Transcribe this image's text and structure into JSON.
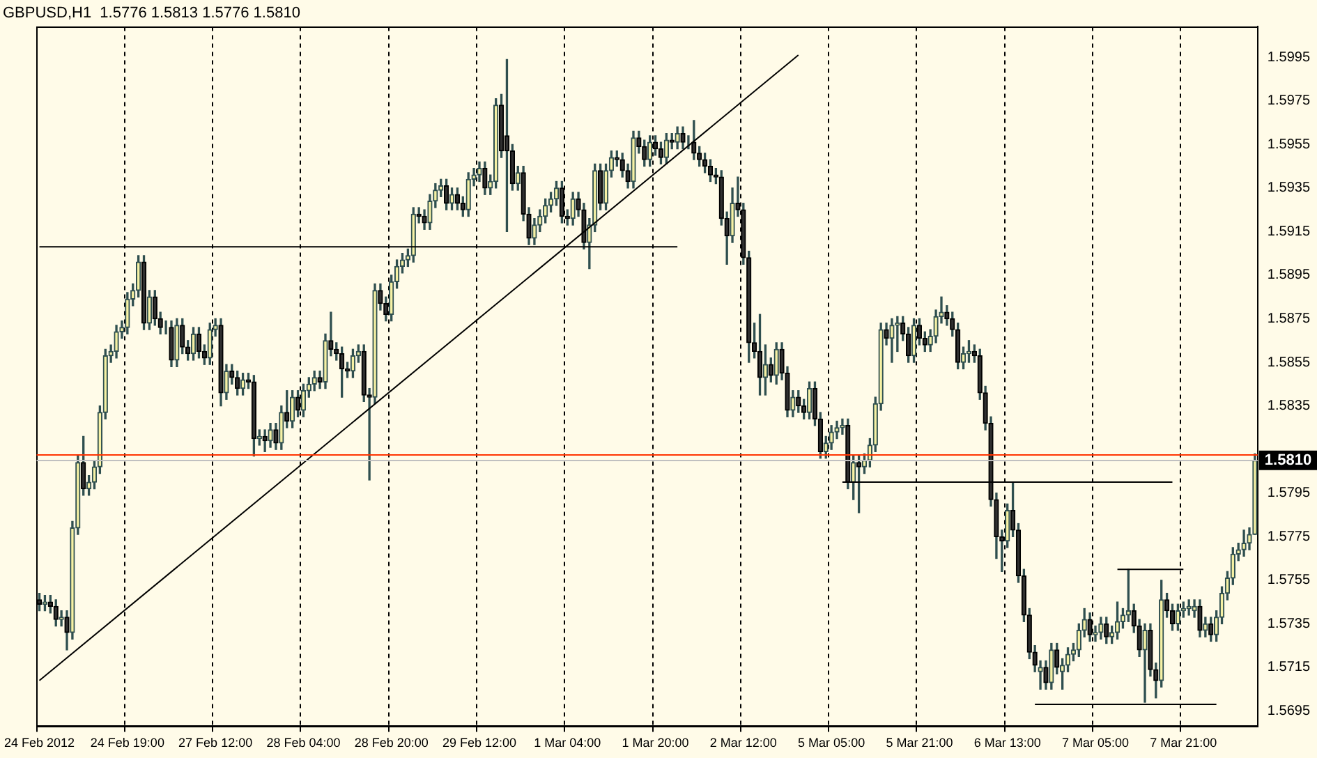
{
  "chart_data": {
    "type": "candlestick",
    "title": "GBPUSD,H1  1.5776 1.5813 1.5776 1.5810",
    "categories": [
      "24 Feb 2012",
      null,
      null,
      null,
      null,
      null,
      null,
      null,
      null,
      null,
      null,
      null,
      null,
      null,
      null,
      null,
      "24 Feb 19:00",
      null,
      null,
      null,
      null,
      null,
      null,
      null,
      null,
      null,
      null,
      null,
      null,
      null,
      null,
      null,
      "27 Feb 12:00",
      null,
      null,
      null,
      null,
      null,
      null,
      null,
      null,
      null,
      null,
      null,
      null,
      null,
      null,
      null,
      "28 Feb 04:00",
      null,
      null,
      null,
      null,
      null,
      null,
      null,
      null,
      null,
      null,
      null,
      null,
      null,
      null,
      null,
      "28 Feb 20:00",
      null,
      null,
      null,
      null,
      null,
      null,
      null,
      null,
      null,
      null,
      null,
      null,
      null,
      null,
      null,
      "29 Feb 12:00",
      null,
      null,
      null,
      null,
      null,
      null,
      null,
      null,
      null,
      null,
      null,
      null,
      null,
      null,
      null,
      "1 Mar 04:00",
      null,
      null,
      null,
      null,
      null,
      null,
      null,
      null,
      null,
      null,
      null,
      null,
      null,
      null,
      null,
      "1 Mar 20:00",
      null,
      null,
      null,
      null,
      null,
      null,
      null,
      null,
      null,
      null,
      null,
      null,
      null,
      null,
      null,
      "2 Mar 12:00",
      null,
      null,
      null,
      null,
      null,
      null,
      null,
      null,
      null,
      null,
      null,
      null,
      null,
      null,
      null,
      "5 Mar 05:00",
      null,
      null,
      null,
      null,
      null,
      null,
      null,
      null,
      null,
      null,
      null,
      null,
      null,
      null,
      null,
      "5 Mar 21:00",
      null,
      null,
      null,
      null,
      null,
      null,
      null,
      null,
      null,
      null,
      null,
      null,
      null,
      null,
      null,
      "6 Mar 13:00",
      null,
      null,
      null,
      null,
      null,
      null,
      null,
      null,
      null,
      null,
      null,
      null,
      null,
      null,
      null,
      "7 Mar 05:00",
      null,
      null,
      null,
      null,
      null,
      null,
      null,
      null,
      null,
      null,
      null,
      null,
      null,
      null,
      null,
      "7 Mar 21:00",
      null,
      null,
      null,
      null,
      null,
      null,
      null,
      null,
      null,
      null,
      null,
      null,
      null
    ],
    "ohlc": [
      [
        1.5746,
        1.5749,
        1.5741,
        1.5744
      ],
      [
        1.5744,
        1.5748,
        1.5741,
        1.5745
      ],
      [
        1.5745,
        1.5748,
        1.574,
        1.5743
      ],
      [
        1.5743,
        1.5746,
        1.5734,
        1.5737
      ],
      [
        1.5737,
        1.5741,
        1.5734,
        1.5738
      ],
      [
        1.5738,
        1.5741,
        1.5723,
        1.5731
      ],
      [
        1.5731,
        1.5782,
        1.5728,
        1.5779
      ],
      [
        1.5779,
        1.5812,
        1.5776,
        1.5809
      ],
      [
        1.5809,
        1.5821,
        1.5794,
        1.5797
      ],
      [
        1.5797,
        1.5803,
        1.5794,
        1.58
      ],
      [
        1.58,
        1.581,
        1.5797,
        1.5807
      ],
      [
        1.5807,
        1.5835,
        1.5804,
        1.5832
      ],
      [
        1.5832,
        1.5861,
        1.5829,
        1.5858
      ],
      [
        1.5858,
        1.5863,
        1.5855,
        1.586
      ],
      [
        1.586,
        1.5872,
        1.5857,
        1.5869
      ],
      [
        1.5869,
        1.5874,
        1.5866,
        1.5871
      ],
      [
        1.5871,
        1.5887,
        1.5868,
        1.5884
      ],
      [
        1.5884,
        1.5891,
        1.5881,
        1.5888
      ],
      [
        1.5888,
        1.5904,
        1.5885,
        1.5901
      ],
      [
        1.5901,
        1.5904,
        1.587,
        1.5873
      ],
      [
        1.5873,
        1.5888,
        1.587,
        1.5885
      ],
      [
        1.5885,
        1.5888,
        1.5872,
        1.5875
      ],
      [
        1.5875,
        1.5878,
        1.5868,
        1.5871
      ],
      [
        1.5871,
        1.5874,
        1.5868,
        1.5871
      ],
      [
        1.5871,
        1.5874,
        1.5853,
        1.5856
      ],
      [
        1.5856,
        1.5875,
        1.5853,
        1.5872
      ],
      [
        1.5872,
        1.5875,
        1.5859,
        1.5862
      ],
      [
        1.5862,
        1.5865,
        1.5856,
        1.5859
      ],
      [
        1.5859,
        1.5871,
        1.5856,
        1.5868
      ],
      [
        1.5868,
        1.5871,
        1.5857,
        1.586
      ],
      [
        1.586,
        1.5863,
        1.5854,
        1.5857
      ],
      [
        1.5857,
        1.5873,
        1.5854,
        1.587
      ],
      [
        1.587,
        1.5875,
        1.5867,
        1.5872
      ],
      [
        1.5872,
        1.5875,
        1.5835,
        1.5841
      ],
      [
        1.5841,
        1.5854,
        1.5838,
        1.5851
      ],
      [
        1.5851,
        1.5854,
        1.5845,
        1.5848
      ],
      [
        1.5848,
        1.5851,
        1.584,
        1.5843
      ],
      [
        1.5843,
        1.585,
        1.584,
        1.5847
      ],
      [
        1.5847,
        1.585,
        1.5843,
        1.5846
      ],
      [
        1.5846,
        1.5849,
        1.5812,
        1.582
      ],
      [
        1.582,
        1.5824,
        1.5817,
        1.5821
      ],
      [
        1.5821,
        1.5824,
        1.5814,
        1.5819
      ],
      [
        1.5819,
        1.5827,
        1.5816,
        1.5824
      ],
      [
        1.5824,
        1.5827,
        1.5815,
        1.5818
      ],
      [
        1.5818,
        1.5835,
        1.5815,
        1.5832
      ],
      [
        1.5832,
        1.5842,
        1.5825,
        1.5828
      ],
      [
        1.5828,
        1.5842,
        1.5825,
        1.5839
      ],
      [
        1.5839,
        1.5842,
        1.583,
        1.5833
      ],
      [
        1.5833,
        1.5845,
        1.583,
        1.5842
      ],
      [
        1.5842,
        1.5848,
        1.5839,
        1.5845
      ],
      [
        1.5845,
        1.5851,
        1.5842,
        1.5848
      ],
      [
        1.5848,
        1.5851,
        1.5843,
        1.5846
      ],
      [
        1.5846,
        1.5868,
        1.5843,
        1.5865
      ],
      [
        1.5865,
        1.5878,
        1.5858,
        1.5861
      ],
      [
        1.5861,
        1.5864,
        1.5856,
        1.5859
      ],
      [
        1.5859,
        1.5862,
        1.5839,
        1.5852
      ],
      [
        1.5852,
        1.5855,
        1.5848,
        1.5851
      ],
      [
        1.5851,
        1.5861,
        1.5848,
        1.5858
      ],
      [
        1.5858,
        1.5863,
        1.5855,
        1.586
      ],
      [
        1.586,
        1.5863,
        1.5837,
        1.584
      ],
      [
        1.584,
        1.5843,
        1.5801,
        1.5839
      ],
      [
        1.5839,
        1.5891,
        1.5836,
        1.5888
      ],
      [
        1.5888,
        1.5891,
        1.5879,
        1.5882
      ],
      [
        1.5882,
        1.5885,
        1.5874,
        1.5877
      ],
      [
        1.5877,
        1.5895,
        1.5874,
        1.5892
      ],
      [
        1.5892,
        1.5902,
        1.5889,
        1.5899
      ],
      [
        1.5899,
        1.5905,
        1.5896,
        1.5902
      ],
      [
        1.5902,
        1.5907,
        1.5899,
        1.5904
      ],
      [
        1.5904,
        1.5926,
        1.5901,
        1.5923
      ],
      [
        1.5923,
        1.5926,
        1.5919,
        1.5922
      ],
      [
        1.5922,
        1.5925,
        1.5916,
        1.5919
      ],
      [
        1.5919,
        1.5932,
        1.5916,
        1.5929
      ],
      [
        1.5929,
        1.5937,
        1.5926,
        1.5934
      ],
      [
        1.5934,
        1.5939,
        1.5931,
        1.5936
      ],
      [
        1.5936,
        1.5939,
        1.5925,
        1.5928
      ],
      [
        1.5928,
        1.5935,
        1.5925,
        1.5932
      ],
      [
        1.5932,
        1.5935,
        1.5925,
        1.5928
      ],
      [
        1.5928,
        1.5931,
        1.5922,
        1.5925
      ],
      [
        1.5925,
        1.5942,
        1.5922,
        1.5939
      ],
      [
        1.5939,
        1.5944,
        1.5936,
        1.5941
      ],
      [
        1.5941,
        1.5947,
        1.5938,
        1.5944
      ],
      [
        1.5944,
        1.5947,
        1.5932,
        1.5935
      ],
      [
        1.5935,
        1.5941,
        1.5932,
        1.5938
      ],
      [
        1.5938,
        1.5976,
        1.5935,
        1.5973
      ],
      [
        1.5973,
        1.5978,
        1.5949,
        1.5952
      ],
      [
        1.5959,
        1.5994,
        1.5915,
        1.5952
      ],
      [
        1.5952,
        1.5955,
        1.5934,
        1.5937
      ],
      [
        1.5937,
        1.5945,
        1.5934,
        1.5942
      ],
      [
        1.5942,
        1.5945,
        1.592,
        1.5923
      ],
      [
        1.5923,
        1.5926,
        1.5909,
        1.5912
      ],
      [
        1.5912,
        1.5921,
        1.5909,
        1.5918
      ],
      [
        1.5918,
        1.5925,
        1.5915,
        1.5922
      ],
      [
        1.5922,
        1.593,
        1.5919,
        1.5927
      ],
      [
        1.5927,
        1.5933,
        1.5924,
        1.593
      ],
      [
        1.593,
        1.5938,
        1.5927,
        1.5935
      ],
      [
        1.5935,
        1.5938,
        1.5919,
        1.5922
      ],
      [
        1.5922,
        1.5925,
        1.5918,
        1.5921
      ],
      [
        1.5921,
        1.5933,
        1.5918,
        1.593
      ],
      [
        1.593,
        1.5933,
        1.5922,
        1.5925
      ],
      [
        1.5925,
        1.5928,
        1.5907,
        1.591
      ],
      [
        1.591,
        1.5921,
        1.5898,
        1.5918
      ],
      [
        1.5918,
        1.5946,
        1.5915,
        1.5943
      ],
      [
        1.5943,
        1.5946,
        1.5925,
        1.5928
      ],
      [
        1.5928,
        1.5946,
        1.5925,
        1.5943
      ],
      [
        1.5943,
        1.5952,
        1.594,
        1.5949
      ],
      [
        1.5949,
        1.5952,
        1.5945,
        1.5948
      ],
      [
        1.5948,
        1.5951,
        1.594,
        1.5943
      ],
      [
        1.5943,
        1.5946,
        1.5935,
        1.5938
      ],
      [
        1.5938,
        1.5961,
        1.5935,
        1.5958
      ],
      [
        1.5958,
        1.5961,
        1.5951,
        1.5954
      ],
      [
        1.5954,
        1.5957,
        1.5945,
        1.5948
      ],
      [
        1.5948,
        1.5959,
        1.5945,
        1.5956
      ],
      [
        1.5956,
        1.5959,
        1.595,
        1.5953
      ],
      [
        1.5953,
        1.5956,
        1.5946,
        1.5949
      ],
      [
        1.5949,
        1.596,
        1.5946,
        1.5957
      ],
      [
        1.5957,
        1.596,
        1.5953,
        1.5956
      ],
      [
        1.5956,
        1.5963,
        1.5953,
        1.596
      ],
      [
        1.596,
        1.5963,
        1.5953,
        1.5956
      ],
      [
        1.5956,
        1.5959,
        1.5953,
        1.5956
      ],
      [
        1.5956,
        1.5966,
        1.5948,
        1.5951
      ],
      [
        1.5951,
        1.5954,
        1.5945,
        1.5948
      ],
      [
        1.5948,
        1.5951,
        1.5942,
        1.5945
      ],
      [
        1.5945,
        1.5948,
        1.5938,
        1.5941
      ],
      [
        1.5941,
        1.5944,
        1.5937,
        1.594
      ],
      [
        1.594,
        1.5943,
        1.5918,
        1.5921
      ],
      [
        1.5921,
        1.5924,
        1.59,
        1.5913
      ],
      [
        1.5913,
        1.5935,
        1.591,
        1.5928
      ],
      [
        1.5928,
        1.594,
        1.5922,
        1.5925
      ],
      [
        1.5925,
        1.5928,
        1.59,
        1.5903
      ],
      [
        1.5903,
        1.5906,
        1.5855,
        1.5864
      ],
      [
        1.5864,
        1.5873,
        1.5857,
        1.586
      ],
      [
        1.586,
        1.5877,
        1.584,
        1.5848
      ],
      [
        1.5848,
        1.5863,
        1.584,
        1.5854
      ],
      [
        1.5854,
        1.5857,
        1.5846,
        1.5849
      ],
      [
        1.5849,
        1.5864,
        1.5845,
        1.5861
      ],
      [
        1.5861,
        1.5864,
        1.5847,
        1.585
      ],
      [
        1.585,
        1.5853,
        1.583,
        1.5833
      ],
      [
        1.5833,
        1.5842,
        1.583,
        1.5839
      ],
      [
        1.5839,
        1.5842,
        1.5832,
        1.5835
      ],
      [
        1.5835,
        1.5838,
        1.5829,
        1.5832
      ],
      [
        1.5832,
        1.5846,
        1.5829,
        1.5843
      ],
      [
        1.5843,
        1.5846,
        1.5826,
        1.5829
      ],
      [
        1.5829,
        1.5832,
        1.5811,
        1.5814
      ],
      [
        1.5814,
        1.5821,
        1.5811,
        1.5818
      ],
      [
        1.5818,
        1.5826,
        1.5815,
        1.5823
      ],
      [
        1.5823,
        1.5828,
        1.582,
        1.5825
      ],
      [
        1.5825,
        1.5829,
        1.5822,
        1.5826
      ],
      [
        1.5826,
        1.5829,
        1.5797,
        1.58
      ],
      [
        1.58,
        1.5812,
        1.5792,
        1.5809
      ],
      [
        1.5809,
        1.5812,
        1.5786,
        1.5807
      ],
      [
        1.5807,
        1.5813,
        1.5804,
        1.581
      ],
      [
        1.581,
        1.582,
        1.5807,
        1.5817
      ],
      [
        1.5817,
        1.5839,
        1.5814,
        1.5836
      ],
      [
        1.5836,
        1.5873,
        1.5833,
        1.587
      ],
      [
        1.587,
        1.5873,
        1.5863,
        1.5866
      ],
      [
        1.5866,
        1.5875,
        1.5855,
        1.5872
      ],
      [
        1.5872,
        1.5876,
        1.586,
        1.5873
      ],
      [
        1.5873,
        1.5876,
        1.5865,
        1.5868
      ],
      [
        1.5868,
        1.5871,
        1.5855,
        1.5858
      ],
      [
        1.5858,
        1.5875,
        1.5855,
        1.5872
      ],
      [
        1.5872,
        1.5875,
        1.5863,
        1.5866
      ],
      [
        1.5866,
        1.5869,
        1.586,
        1.5863
      ],
      [
        1.5863,
        1.587,
        1.586,
        1.5867
      ],
      [
        1.5867,
        1.5879,
        1.5864,
        1.5876
      ],
      [
        1.5876,
        1.5885,
        1.5873,
        1.5878
      ],
      [
        1.5878,
        1.5881,
        1.5872,
        1.5875
      ],
      [
        1.5875,
        1.5878,
        1.5867,
        1.587
      ],
      [
        1.587,
        1.5873,
        1.5852,
        1.5855
      ],
      [
        1.5855,
        1.5862,
        1.5852,
        1.5859
      ],
      [
        1.5859,
        1.5865,
        1.5855,
        1.586
      ],
      [
        1.586,
        1.5863,
        1.5855,
        1.5858
      ],
      [
        1.5858,
        1.5861,
        1.5838,
        1.5841
      ],
      [
        1.5841,
        1.5844,
        1.5824,
        1.5827
      ],
      [
        1.5827,
        1.583,
        1.5789,
        1.5792
      ],
      [
        1.5792,
        1.5795,
        1.5765,
        1.5775
      ],
      [
        1.5775,
        1.5778,
        1.5759,
        1.5773
      ],
      [
        1.5773,
        1.579,
        1.577,
        1.5787
      ],
      [
        1.5787,
        1.58,
        1.5775,
        1.5778
      ],
      [
        1.5778,
        1.5781,
        1.5754,
        1.5757
      ],
      [
        1.5757,
        1.576,
        1.5736,
        1.5739
      ],
      [
        1.5739,
        1.5742,
        1.5719,
        1.5722
      ],
      [
        1.5722,
        1.5725,
        1.5713,
        1.5716
      ],
      [
        1.5713,
        1.5718,
        1.5705,
        1.5715
      ],
      [
        1.5715,
        1.5718,
        1.5705,
        1.5708
      ],
      [
        1.5708,
        1.5726,
        1.5705,
        1.5723
      ],
      [
        1.5723,
        1.5726,
        1.5712,
        1.5715
      ],
      [
        1.5713,
        1.5719,
        1.5705,
        1.5716
      ],
      [
        1.5716,
        1.5724,
        1.5713,
        1.5721
      ],
      [
        1.5721,
        1.5726,
        1.5718,
        1.5723
      ],
      [
        1.5723,
        1.5735,
        1.572,
        1.5732
      ],
      [
        1.5732,
        1.5742,
        1.5729,
        1.5737
      ],
      [
        1.5737,
        1.574,
        1.5727,
        1.573
      ],
      [
        1.573,
        1.5734,
        1.5727,
        1.5731
      ],
      [
        1.5731,
        1.5738,
        1.5728,
        1.5735
      ],
      [
        1.5735,
        1.5738,
        1.5726,
        1.5729
      ],
      [
        1.5729,
        1.5734,
        1.5726,
        1.5731
      ],
      [
        1.5731,
        1.5745,
        1.5728,
        1.5736
      ],
      [
        1.5736,
        1.5742,
        1.5733,
        1.5739
      ],
      [
        1.5739,
        1.576,
        1.5736,
        1.5741
      ],
      [
        1.5741,
        1.5744,
        1.5731,
        1.5734
      ],
      [
        1.5734,
        1.5737,
        1.572,
        1.5723
      ],
      [
        1.5723,
        1.5735,
        1.5699,
        1.5732
      ],
      [
        1.5732,
        1.5735,
        1.5711,
        1.5714
      ],
      [
        1.5714,
        1.5717,
        1.5701,
        1.5709
      ],
      [
        1.5709,
        1.5755,
        1.5706,
        1.5746
      ],
      [
        1.5746,
        1.5749,
        1.5738,
        1.5741
      ],
      [
        1.5741,
        1.5744,
        1.5732,
        1.5735
      ],
      [
        1.5735,
        1.5744,
        1.5732,
        1.5741
      ],
      [
        1.5741,
        1.5745,
        1.5738,
        1.5742
      ],
      [
        1.5742,
        1.5746,
        1.5739,
        1.5743
      ],
      [
        1.5741,
        1.5746,
        1.5738,
        1.5743
      ],
      [
        1.5743,
        1.5746,
        1.5729,
        1.5732
      ],
      [
        1.5732,
        1.5738,
        1.5729,
        1.5735
      ],
      [
        1.5735,
        1.5738,
        1.5727,
        1.573
      ],
      [
        1.573,
        1.5741,
        1.5727,
        1.5738
      ],
      [
        1.5738,
        1.5752,
        1.5735,
        1.5749
      ],
      [
        1.5749,
        1.5759,
        1.5746,
        1.5756
      ],
      [
        1.5756,
        1.577,
        1.5753,
        1.5767
      ],
      [
        1.5767,
        1.5772,
        1.5764,
        1.5769
      ],
      [
        1.5769,
        1.5778,
        1.5766,
        1.5772
      ],
      [
        1.5772,
        1.5779,
        1.5769,
        1.5776
      ],
      [
        1.5776,
        1.5813,
        1.5776,
        1.581
      ]
    ],
    "series": [
      {
        "type": "line",
        "color": "#000000",
        "values": [
          1.5709,
          null,
          null,
          null,
          null,
          null,
          null,
          null,
          null,
          null,
          null,
          null,
          null,
          null,
          null,
          null,
          null,
          null,
          null,
          null,
          null,
          null,
          null,
          null,
          null,
          null,
          null,
          null,
          null,
          null,
          null,
          null,
          null,
          null,
          null,
          null,
          null,
          null,
          null,
          null,
          null,
          null,
          null,
          null,
          null,
          null,
          null,
          null,
          null,
          null,
          null,
          null,
          null,
          null,
          null,
          null,
          null,
          null,
          null,
          null,
          null,
          null,
          null,
          null,
          null,
          null,
          null,
          null,
          null,
          null,
          null,
          null,
          null,
          null,
          null,
          null,
          null,
          null,
          null,
          null,
          null,
          null,
          null,
          null,
          null,
          null,
          null,
          null,
          null,
          null,
          null,
          null,
          null,
          null,
          null,
          null,
          null,
          null,
          null,
          null,
          null,
          null,
          null,
          null,
          null,
          null,
          null,
          null,
          null,
          null,
          null,
          null,
          null,
          null,
          null,
          null,
          null,
          null,
          null,
          null,
          null,
          null,
          null,
          null,
          null,
          null,
          null,
          null,
          null,
          null,
          null,
          null,
          null,
          null,
          null,
          null,
          null,
          null,
          1.5996,
          null,
          null,
          null,
          null,
          null,
          null,
          null,
          null,
          null,
          null,
          null,
          null,
          null,
          null,
          null,
          null,
          null,
          null,
          null,
          null,
          null,
          null,
          null,
          null,
          null,
          null,
          null,
          null,
          null,
          null,
          null,
          null,
          null,
          null,
          null,
          null,
          null,
          null,
          null,
          null,
          null,
          null,
          null,
          null,
          null,
          null,
          null,
          null,
          null,
          null,
          null,
          null,
          null,
          null,
          null,
          null,
          null,
          null,
          null,
          null,
          null,
          null,
          null,
          null,
          null,
          null,
          null,
          null,
          null,
          null,
          null,
          null,
          null,
          null,
          null,
          null,
          null,
          null,
          null,
          null,
          null,
          null,
          null
        ]
      },
      {
        "type": "line",
        "color": "#000000",
        "values": [
          1.5908,
          null,
          null,
          null,
          null,
          null,
          null,
          null,
          null,
          null,
          null,
          null,
          null,
          null,
          null,
          null,
          null,
          null,
          null,
          null,
          null,
          null,
          null,
          null,
          null,
          null,
          null,
          null,
          null,
          null,
          null,
          null,
          null,
          null,
          null,
          null,
          null,
          null,
          null,
          null,
          null,
          null,
          null,
          null,
          null,
          null,
          null,
          null,
          null,
          null,
          null,
          null,
          null,
          null,
          null,
          null,
          null,
          null,
          null,
          null,
          null,
          null,
          null,
          null,
          null,
          null,
          null,
          null,
          null,
          null,
          null,
          null,
          null,
          null,
          null,
          null,
          null,
          null,
          null,
          null,
          null,
          null,
          null,
          null,
          null,
          null,
          null,
          null,
          null,
          null,
          null,
          null,
          null,
          null,
          null,
          null,
          null,
          null,
          null,
          null,
          null,
          null,
          null,
          null,
          null,
          null,
          null,
          null,
          null,
          null,
          null,
          null,
          null,
          null,
          null,
          null,
          1.5908,
          null,
          null,
          null,
          null,
          null,
          null,
          null,
          null,
          null,
          null,
          null,
          null,
          null,
          null,
          null,
          null,
          null,
          null,
          null,
          null,
          null,
          null,
          null,
          null,
          null,
          null,
          null,
          null,
          null,
          null,
          null,
          null,
          null,
          null,
          null,
          null,
          null,
          null,
          null,
          null,
          null,
          null,
          null,
          null,
          null,
          null,
          null,
          null,
          null,
          null,
          null,
          null,
          null,
          null,
          null,
          null,
          null,
          null,
          null,
          null,
          null,
          null,
          null,
          null,
          null,
          null,
          null,
          null,
          null,
          null,
          null,
          null,
          null,
          null,
          null,
          null,
          null,
          null,
          null,
          null,
          null,
          null,
          null,
          null,
          null,
          null,
          null,
          null,
          null,
          null,
          null,
          null,
          null,
          null,
          null,
          null,
          null,
          null,
          null,
          null,
          null,
          null,
          null,
          null,
          null
        ]
      },
      {
        "type": "line",
        "color": "#000000",
        "values": [
          null,
          null,
          null,
          null,
          null,
          null,
          null,
          null,
          null,
          null,
          null,
          null,
          null,
          null,
          null,
          null,
          null,
          null,
          null,
          null,
          null,
          null,
          null,
          null,
          null,
          null,
          null,
          null,
          null,
          null,
          null,
          null,
          null,
          null,
          null,
          null,
          null,
          null,
          null,
          null,
          null,
          null,
          null,
          null,
          null,
          null,
          null,
          null,
          null,
          null,
          null,
          null,
          null,
          null,
          null,
          null,
          null,
          null,
          null,
          null,
          null,
          null,
          null,
          null,
          null,
          null,
          null,
          null,
          null,
          null,
          null,
          null,
          null,
          null,
          null,
          null,
          null,
          null,
          null,
          null,
          null,
          null,
          null,
          null,
          null,
          null,
          null,
          null,
          null,
          null,
          null,
          null,
          null,
          null,
          null,
          null,
          null,
          null,
          null,
          null,
          null,
          null,
          null,
          null,
          null,
          null,
          null,
          null,
          null,
          null,
          null,
          null,
          null,
          null,
          null,
          null,
          null,
          null,
          null,
          null,
          null,
          null,
          null,
          null,
          null,
          null,
          null,
          null,
          null,
          null,
          null,
          null,
          null,
          null,
          null,
          null,
          null,
          null,
          null,
          null,
          null,
          null,
          null,
          null,
          null,
          null,
          1.58,
          null,
          null,
          null,
          null,
          null,
          null,
          null,
          null,
          null,
          null,
          null,
          null,
          null,
          null,
          null,
          null,
          null,
          null,
          null,
          null,
          null,
          null,
          null,
          null,
          null,
          null,
          null,
          null,
          null,
          null,
          null,
          null,
          null,
          null,
          null,
          null,
          null,
          null,
          null,
          null,
          null,
          null,
          null,
          null,
          null,
          null,
          null,
          null,
          null,
          null,
          null,
          null,
          null,
          null,
          null,
          null,
          null,
          null,
          null,
          1.58,
          null,
          null,
          null,
          null,
          null,
          null,
          null,
          null,
          null,
          null,
          null,
          null,
          null,
          null,
          null
        ]
      },
      {
        "type": "line",
        "color": "#000000",
        "values": [
          null,
          null,
          null,
          null,
          null,
          null,
          null,
          null,
          null,
          null,
          null,
          null,
          null,
          null,
          null,
          null,
          null,
          null,
          null,
          null,
          null,
          null,
          null,
          null,
          null,
          null,
          null,
          null,
          null,
          null,
          null,
          null,
          null,
          null,
          null,
          null,
          null,
          null,
          null,
          null,
          null,
          null,
          null,
          null,
          null,
          null,
          null,
          null,
          null,
          null,
          null,
          null,
          null,
          null,
          null,
          null,
          null,
          null,
          null,
          null,
          null,
          null,
          null,
          null,
          null,
          null,
          null,
          null,
          null,
          null,
          null,
          null,
          null,
          null,
          null,
          null,
          null,
          null,
          null,
          null,
          null,
          null,
          null,
          null,
          null,
          null,
          null,
          null,
          null,
          null,
          null,
          null,
          null,
          null,
          null,
          null,
          null,
          null,
          null,
          null,
          null,
          null,
          null,
          null,
          null,
          null,
          null,
          null,
          null,
          null,
          null,
          null,
          null,
          null,
          null,
          null,
          null,
          null,
          null,
          null,
          null,
          null,
          null,
          null,
          null,
          null,
          null,
          null,
          null,
          null,
          null,
          null,
          null,
          null,
          null,
          null,
          null,
          null,
          null,
          null,
          null,
          null,
          null,
          null,
          null,
          null,
          null,
          null,
          null,
          null,
          null,
          null,
          null,
          null,
          null,
          null,
          null,
          null,
          null,
          null,
          null,
          null,
          null,
          null,
          null,
          null,
          null,
          null,
          null,
          null,
          null,
          null,
          null,
          null,
          null,
          null,
          null,
          null,
          null,
          null,
          null,
          1.5698,
          null,
          null,
          null,
          null,
          null,
          null,
          null,
          null,
          null,
          null,
          null,
          null,
          null,
          null,
          null,
          null,
          null,
          null,
          null,
          null,
          null,
          null,
          null,
          null,
          null,
          null,
          null,
          null,
          null,
          null,
          null,
          null,
          1.5698,
          null,
          null,
          null,
          null,
          null,
          null,
          null
        ]
      },
      {
        "type": "line",
        "color": "#000000",
        "values": [
          null,
          null,
          null,
          null,
          null,
          null,
          null,
          null,
          null,
          null,
          null,
          null,
          null,
          null,
          null,
          null,
          null,
          null,
          null,
          null,
          null,
          null,
          null,
          null,
          null,
          null,
          null,
          null,
          null,
          null,
          null,
          null,
          null,
          null,
          null,
          null,
          null,
          null,
          null,
          null,
          null,
          null,
          null,
          null,
          null,
          null,
          null,
          null,
          null,
          null,
          null,
          null,
          null,
          null,
          null,
          null,
          null,
          null,
          null,
          null,
          null,
          null,
          null,
          null,
          null,
          null,
          null,
          null,
          null,
          null,
          null,
          null,
          null,
          null,
          null,
          null,
          null,
          null,
          null,
          null,
          null,
          null,
          null,
          null,
          null,
          null,
          null,
          null,
          null,
          null,
          null,
          null,
          null,
          null,
          null,
          null,
          null,
          null,
          null,
          null,
          null,
          null,
          null,
          null,
          null,
          null,
          null,
          null,
          null,
          null,
          null,
          null,
          null,
          null,
          null,
          null,
          null,
          null,
          null,
          null,
          null,
          null,
          null,
          null,
          null,
          null,
          null,
          null,
          null,
          null,
          null,
          null,
          null,
          null,
          null,
          null,
          null,
          null,
          null,
          null,
          null,
          null,
          null,
          null,
          null,
          null,
          null,
          null,
          null,
          null,
          null,
          null,
          null,
          null,
          null,
          null,
          null,
          null,
          null,
          null,
          null,
          null,
          null,
          null,
          null,
          null,
          null,
          null,
          null,
          null,
          null,
          null,
          null,
          null,
          null,
          null,
          null,
          null,
          null,
          null,
          null,
          null,
          null,
          null,
          null,
          null,
          null,
          null,
          null,
          null,
          null,
          null,
          null,
          null,
          null,
          null,
          1.576,
          null,
          null,
          null,
          null,
          null,
          null,
          null,
          null,
          null,
          null,
          null,
          1.576,
          null,
          null,
          null,
          null,
          null,
          null,
          null,
          null,
          null,
          null,
          null,
          null,
          null
        ]
      }
    ],
    "ylim": [
      1.5688,
      1.6009
    ],
    "yticks": [
      1.5695,
      1.5715,
      1.5735,
      1.5755,
      1.5775,
      1.5795,
      1.5835,
      1.5855,
      1.5875,
      1.5895,
      1.5915,
      1.5935,
      1.5955,
      1.5975,
      1.5995
    ],
    "ref_lines": [
      {
        "axis": "y",
        "value": 1.5813,
        "color": "#ff3300"
      },
      {
        "axis": "y",
        "value": 1.581,
        "label": "1.5810",
        "color": "#c0c0c0"
      }
    ],
    "grid": "x",
    "legend": false
  }
}
